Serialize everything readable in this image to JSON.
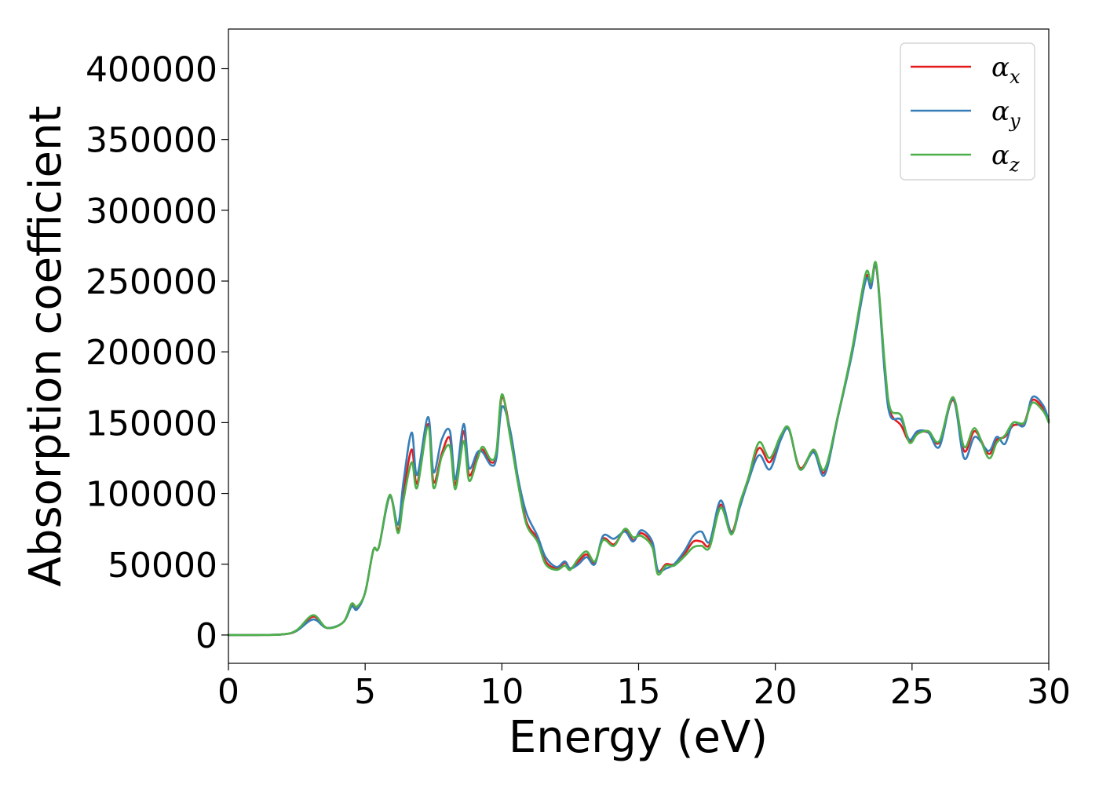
{
  "chart_data": {
    "type": "line",
    "title": "",
    "xlabel": "Energy (eV)",
    "ylabel": "Absorption coefficient",
    "xlim": [
      0,
      30
    ],
    "ylim": [
      -20000,
      428000
    ],
    "xticks": [
      0,
      5,
      10,
      15,
      20,
      25,
      30
    ],
    "xtick_labels": [
      "0",
      "5",
      "10",
      "15",
      "20",
      "25",
      "30"
    ],
    "yticks": [
      0,
      50000,
      100000,
      150000,
      200000,
      250000,
      300000,
      350000,
      400000
    ],
    "ytick_labels": [
      "0",
      "50000",
      "100000",
      "150000",
      "200000",
      "250000",
      "300000",
      "350000",
      "400000"
    ],
    "grid": false,
    "legend_position": "top-right",
    "series": [
      {
        "legend_symbol": "α",
        "legend_subscript": "x",
        "color": "#e41a1c",
        "points": [
          [
            0,
            0
          ],
          [
            1,
            0
          ],
          [
            2,
            500
          ],
          [
            2.5,
            3000
          ],
          [
            3.1,
            13000
          ],
          [
            3.6,
            5000
          ],
          [
            4.2,
            9000
          ],
          [
            4.5,
            21000
          ],
          [
            4.7,
            19000
          ],
          [
            5,
            30000
          ],
          [
            5.3,
            60000
          ],
          [
            5.5,
            62000
          ],
          [
            5.9,
            98000
          ],
          [
            6.2,
            74000
          ],
          [
            6.4,
            100000
          ],
          [
            6.7,
            131000
          ],
          [
            6.9,
            107000
          ],
          [
            7.3,
            149000
          ],
          [
            7.5,
            108000
          ],
          [
            7.8,
            128000
          ],
          [
            8.1,
            139000
          ],
          [
            8.3,
            106000
          ],
          [
            8.6,
            144000
          ],
          [
            8.8,
            113000
          ],
          [
            9.1,
            126000
          ],
          [
            9.3,
            131000
          ],
          [
            9.6,
            122000
          ],
          [
            9.8,
            128000
          ],
          [
            10,
            168000
          ],
          [
            10.3,
            144000
          ],
          [
            10.6,
            108000
          ],
          [
            10.9,
            80000
          ],
          [
            11.3,
            68000
          ],
          [
            11.6,
            52000
          ],
          [
            12,
            47000
          ],
          [
            12.3,
            51000
          ],
          [
            12.5,
            47000
          ],
          [
            12.8,
            52000
          ],
          [
            13.1,
            57000
          ],
          [
            13.4,
            51000
          ],
          [
            13.7,
            68000
          ],
          [
            14.1,
            64000
          ],
          [
            14.5,
            74000
          ],
          [
            14.8,
            67000
          ],
          [
            15.1,
            72000
          ],
          [
            15.5,
            64000
          ],
          [
            15.7,
            45000
          ],
          [
            16,
            50000
          ],
          [
            16.3,
            50000
          ],
          [
            16.7,
            58000
          ],
          [
            17,
            66000
          ],
          [
            17.3,
            66000
          ],
          [
            17.6,
            64000
          ],
          [
            18,
            92000
          ],
          [
            18.4,
            73000
          ],
          [
            18.7,
            92000
          ],
          [
            19,
            110000
          ],
          [
            19.4,
            132000
          ],
          [
            19.8,
            122000
          ],
          [
            20.2,
            140000
          ],
          [
            20.5,
            145000
          ],
          [
            20.9,
            118000
          ],
          [
            21.4,
            130000
          ],
          [
            21.8,
            115000
          ],
          [
            22.3,
            155000
          ],
          [
            22.8,
            200000
          ],
          [
            23.3,
            252000
          ],
          [
            23.5,
            247000
          ],
          [
            23.7,
            259000
          ],
          [
            24,
            190000
          ],
          [
            24.2,
            158000
          ],
          [
            24.6,
            148000
          ],
          [
            24.9,
            137000
          ],
          [
            25.2,
            143000
          ],
          [
            25.6,
            143000
          ],
          [
            26,
            136000
          ],
          [
            26.5,
            166000
          ],
          [
            26.9,
            130000
          ],
          [
            27.3,
            144000
          ],
          [
            27.8,
            128000
          ],
          [
            28.1,
            138000
          ],
          [
            28.4,
            140000
          ],
          [
            28.7,
            148000
          ],
          [
            29.1,
            150000
          ],
          [
            29.4,
            166000
          ],
          [
            29.8,
            160000
          ],
          [
            30,
            152000
          ]
        ]
      },
      {
        "legend_symbol": "α",
        "legend_subscript": "y",
        "color": "#377eb8",
        "points": [
          [
            0,
            0
          ],
          [
            1,
            0
          ],
          [
            2,
            500
          ],
          [
            2.5,
            3000
          ],
          [
            3.1,
            11000
          ],
          [
            3.6,
            5000
          ],
          [
            4.2,
            9000
          ],
          [
            4.5,
            20000
          ],
          [
            4.7,
            18000
          ],
          [
            5,
            30000
          ],
          [
            5.3,
            60000
          ],
          [
            5.5,
            62000
          ],
          [
            5.9,
            98000
          ],
          [
            6.2,
            78000
          ],
          [
            6.4,
            108000
          ],
          [
            6.7,
            143000
          ],
          [
            6.9,
            113000
          ],
          [
            7.3,
            154000
          ],
          [
            7.5,
            115000
          ],
          [
            7.8,
            138000
          ],
          [
            8.1,
            144000
          ],
          [
            8.3,
            110000
          ],
          [
            8.6,
            149000
          ],
          [
            8.8,
            118000
          ],
          [
            9.1,
            129000
          ],
          [
            9.3,
            129000
          ],
          [
            9.6,
            120000
          ],
          [
            9.8,
            125000
          ],
          [
            10,
            161000
          ],
          [
            10.3,
            145000
          ],
          [
            10.6,
            110000
          ],
          [
            10.9,
            86000
          ],
          [
            11.3,
            70000
          ],
          [
            11.6,
            55000
          ],
          [
            12,
            48000
          ],
          [
            12.3,
            52000
          ],
          [
            12.5,
            47000
          ],
          [
            12.8,
            50000
          ],
          [
            13.1,
            55000
          ],
          [
            13.4,
            50000
          ],
          [
            13.7,
            70000
          ],
          [
            14.1,
            68000
          ],
          [
            14.5,
            73000
          ],
          [
            14.8,
            66000
          ],
          [
            15.1,
            74000
          ],
          [
            15.5,
            66000
          ],
          [
            15.7,
            46000
          ],
          [
            16,
            47000
          ],
          [
            16.3,
            50000
          ],
          [
            16.7,
            60000
          ],
          [
            17,
            70000
          ],
          [
            17.3,
            73000
          ],
          [
            17.6,
            66000
          ],
          [
            18,
            95000
          ],
          [
            18.4,
            72000
          ],
          [
            18.7,
            90000
          ],
          [
            19,
            108000
          ],
          [
            19.4,
            127000
          ],
          [
            19.8,
            117000
          ],
          [
            20.2,
            138000
          ],
          [
            20.5,
            145000
          ],
          [
            20.9,
            117000
          ],
          [
            21.4,
            129000
          ],
          [
            21.8,
            113000
          ],
          [
            22.3,
            155000
          ],
          [
            22.8,
            198000
          ],
          [
            23.3,
            250000
          ],
          [
            23.5,
            245000
          ],
          [
            23.7,
            260000
          ],
          [
            24,
            185000
          ],
          [
            24.2,
            155000
          ],
          [
            24.6,
            152000
          ],
          [
            24.9,
            138000
          ],
          [
            25.2,
            144000
          ],
          [
            25.6,
            143000
          ],
          [
            26,
            133000
          ],
          [
            26.5,
            167000
          ],
          [
            26.9,
            125000
          ],
          [
            27.3,
            140000
          ],
          [
            27.8,
            130000
          ],
          [
            28.1,
            140000
          ],
          [
            28.4,
            135000
          ],
          [
            28.7,
            150000
          ],
          [
            29.1,
            148000
          ],
          [
            29.4,
            168000
          ],
          [
            29.8,
            162000
          ],
          [
            30,
            151000
          ]
        ]
      },
      {
        "legend_symbol": "α",
        "legend_subscript": "z",
        "color": "#4daf4a",
        "points": [
          [
            0,
            0
          ],
          [
            1,
            0
          ],
          [
            2,
            500
          ],
          [
            2.5,
            3500
          ],
          [
            3.1,
            14000
          ],
          [
            3.6,
            5000
          ],
          [
            4.2,
            9000
          ],
          [
            4.5,
            22000
          ],
          [
            4.7,
            20000
          ],
          [
            5,
            30000
          ],
          [
            5.3,
            60000
          ],
          [
            5.5,
            62000
          ],
          [
            5.9,
            99000
          ],
          [
            6.2,
            72000
          ],
          [
            6.4,
            95000
          ],
          [
            6.7,
            122000
          ],
          [
            6.9,
            104000
          ],
          [
            7.3,
            147000
          ],
          [
            7.5,
            104000
          ],
          [
            7.8,
            126000
          ],
          [
            8.1,
            133000
          ],
          [
            8.3,
            103000
          ],
          [
            8.6,
            137000
          ],
          [
            8.8,
            109000
          ],
          [
            9.1,
            124000
          ],
          [
            9.3,
            133000
          ],
          [
            9.6,
            124000
          ],
          [
            9.8,
            130000
          ],
          [
            10,
            170000
          ],
          [
            10.3,
            140000
          ],
          [
            10.6,
            106000
          ],
          [
            10.9,
            78000
          ],
          [
            11.3,
            66000
          ],
          [
            11.6,
            50000
          ],
          [
            12,
            46000
          ],
          [
            12.3,
            49000
          ],
          [
            12.5,
            46000
          ],
          [
            12.8,
            54000
          ],
          [
            13.1,
            59000
          ],
          [
            13.4,
            52000
          ],
          [
            13.7,
            67000
          ],
          [
            14.1,
            63000
          ],
          [
            14.5,
            75000
          ],
          [
            14.8,
            69000
          ],
          [
            15.1,
            70000
          ],
          [
            15.5,
            62000
          ],
          [
            15.7,
            43000
          ],
          [
            16,
            49000
          ],
          [
            16.3,
            49000
          ],
          [
            16.7,
            56000
          ],
          [
            17,
            62000
          ],
          [
            17.3,
            63000
          ],
          [
            17.6,
            62000
          ],
          [
            18,
            90000
          ],
          [
            18.4,
            71000
          ],
          [
            18.7,
            93000
          ],
          [
            19,
            110000
          ],
          [
            19.4,
            136000
          ],
          [
            19.8,
            125000
          ],
          [
            20.2,
            141000
          ],
          [
            20.5,
            146000
          ],
          [
            20.9,
            117000
          ],
          [
            21.4,
            131000
          ],
          [
            21.8,
            117000
          ],
          [
            22.3,
            156000
          ],
          [
            22.8,
            201000
          ],
          [
            23.3,
            255000
          ],
          [
            23.5,
            249000
          ],
          [
            23.7,
            261000
          ],
          [
            24,
            192000
          ],
          [
            24.2,
            160000
          ],
          [
            24.6,
            155000
          ],
          [
            24.9,
            136000
          ],
          [
            25.2,
            142000
          ],
          [
            25.6,
            144000
          ],
          [
            26,
            137000
          ],
          [
            26.5,
            168000
          ],
          [
            26.9,
            133000
          ],
          [
            27.3,
            146000
          ],
          [
            27.8,
            125000
          ],
          [
            28.1,
            136000
          ],
          [
            28.4,
            141000
          ],
          [
            28.7,
            150000
          ],
          [
            29.1,
            150000
          ],
          [
            29.4,
            164000
          ],
          [
            29.8,
            158000
          ],
          [
            30,
            150000
          ]
        ]
      }
    ]
  }
}
